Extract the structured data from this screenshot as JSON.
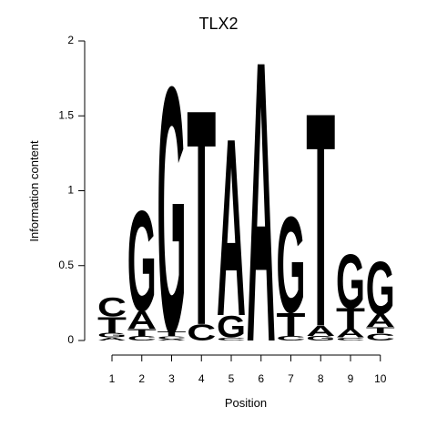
{
  "chart_data": {
    "type": "sequence-logo",
    "title": "TLX2",
    "xlabel": "Position",
    "ylabel": "Information content",
    "ylim": [
      0,
      2
    ],
    "yticks": [
      "0",
      "0.5",
      "1",
      "1.5",
      "2"
    ],
    "positions": [
      "1",
      "2",
      "3",
      "4",
      "5",
      "6",
      "7",
      "8",
      "9",
      "10"
    ],
    "colors": {
      "A": "#00ee00",
      "C": "#0000ee",
      "G": "#f5a000",
      "T": "#ff0000"
    },
    "columns": [
      [
        {
          "letter": "A",
          "bits": 0.02
        },
        {
          "letter": "G",
          "bits": 0.03
        },
        {
          "letter": "T",
          "bits": 0.11
        },
        {
          "letter": "C",
          "bits": 0.13
        }
      ],
      [
        {
          "letter": "C",
          "bits": 0.03
        },
        {
          "letter": "T",
          "bits": 0.05
        },
        {
          "letter": "A",
          "bits": 0.12
        },
        {
          "letter": "G",
          "bits": 0.69
        }
      ],
      [
        {
          "letter": "A",
          "bits": 0.01
        },
        {
          "letter": "C",
          "bits": 0.02
        },
        {
          "letter": "T",
          "bits": 0.03
        },
        {
          "letter": "G",
          "bits": 1.69
        }
      ],
      [
        {
          "letter": "C",
          "bits": 0.11
        },
        {
          "letter": "T",
          "bits": 1.48
        }
      ],
      [
        {
          "letter": "C",
          "bits": 0.02
        },
        {
          "letter": "G",
          "bits": 0.15
        },
        {
          "letter": "A",
          "bits": 1.22
        }
      ],
      [
        {
          "letter": "A",
          "bits": 1.93
        }
      ],
      [
        {
          "letter": "C",
          "bits": 0.03
        },
        {
          "letter": "T",
          "bits": 0.16
        },
        {
          "letter": "G",
          "bits": 0.66
        }
      ],
      [
        {
          "letter": "G",
          "bits": 0.03
        },
        {
          "letter": "A",
          "bits": 0.07
        },
        {
          "letter": "T",
          "bits": 1.47
        }
      ],
      [
        {
          "letter": "C",
          "bits": 0.02
        },
        {
          "letter": "A",
          "bits": 0.06
        },
        {
          "letter": "T",
          "bits": 0.14
        },
        {
          "letter": "G",
          "bits": 0.37
        }
      ],
      [
        {
          "letter": "C",
          "bits": 0.05
        },
        {
          "letter": "T",
          "bits": 0.04
        },
        {
          "letter": "A",
          "bits": 0.09
        },
        {
          "letter": "G",
          "bits": 0.36
        }
      ]
    ]
  }
}
